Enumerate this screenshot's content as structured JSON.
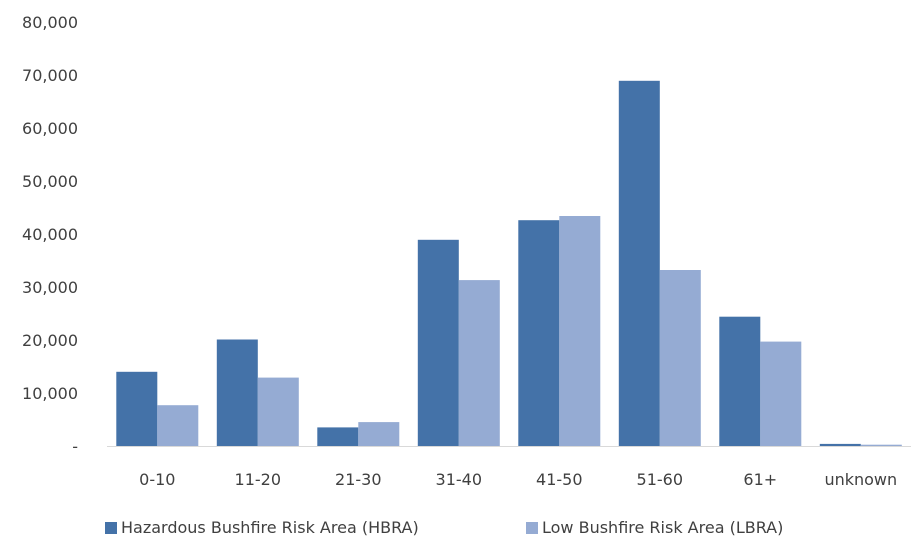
{
  "chart_data": {
    "type": "bar",
    "title": "",
    "xlabel": "",
    "ylabel": "",
    "ylim": [
      0,
      80000
    ],
    "yticks": [
      0,
      10000,
      20000,
      30000,
      40000,
      50000,
      60000,
      70000,
      80000
    ],
    "ytick_labels": [
      "-",
      "10,000",
      "20,000",
      "30,000",
      "40,000",
      "50,000",
      "60,000",
      "70,000",
      "80,000"
    ],
    "categories": [
      "0-10",
      "11-20",
      "21-30",
      "31-40",
      "41-50",
      "51-60",
      "61+",
      "unknown"
    ],
    "series": [
      {
        "name": "Hazardous Bushfire Risk Area (HBRA)",
        "color": "#4472A8",
        "values": [
          14000,
          20100,
          3500,
          38900,
          42600,
          68900,
          24400,
          400
        ]
      },
      {
        "name": "Low Bushfire Risk Area (LBRA)",
        "color": "#95ABD3",
        "values": [
          7700,
          12900,
          4500,
          31300,
          43400,
          33200,
          19700,
          250
        ]
      }
    ],
    "grid": false,
    "legend_position": "bottom"
  }
}
